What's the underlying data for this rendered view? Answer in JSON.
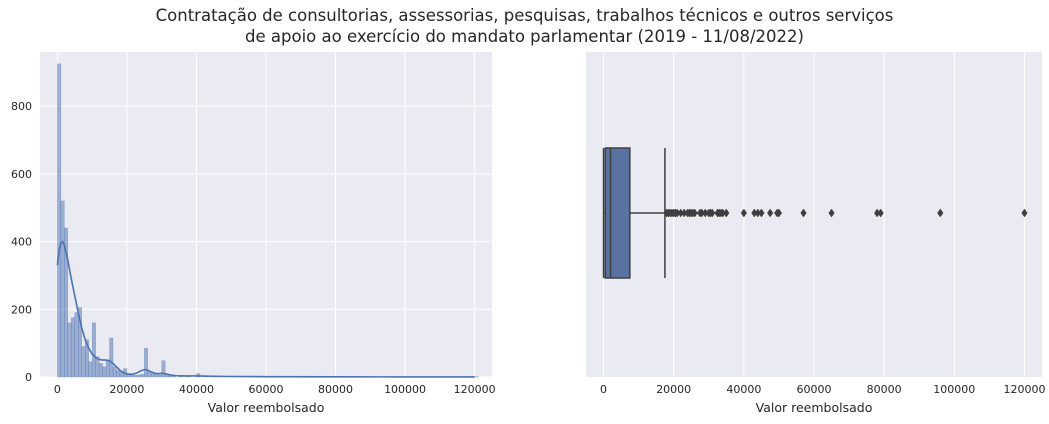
{
  "title_line1": "Contratação de consultorias, assessorias, pesquisas, trabalhos técnicos e outros serviços",
  "title_line2": "de apoio ao exercício do mandato parlamentar (2019 - 11/08/2022)",
  "colors": {
    "background": "#eaeaf2",
    "grid": "#ffffff",
    "bar_fill": "#4c72b0",
    "kde_line": "#4c72b0",
    "box_fill": "#5a72a2",
    "box_edge": "#3f3f3f",
    "text": "#262626"
  },
  "chart_data": [
    {
      "type": "histogram",
      "title": "",
      "xlabel": "Valor reembolsado",
      "ylabel": "",
      "xlim": [
        -5000,
        125000
      ],
      "ylim": [
        0,
        960
      ],
      "grid": true,
      "x_ticks": [
        "0",
        "20000",
        "40000",
        "60000",
        "80000",
        "100000",
        "120000"
      ],
      "y_ticks": [
        "0",
        "200",
        "400",
        "600",
        "800"
      ],
      "bin_width": 1000,
      "bins": [
        {
          "x": 0,
          "y": 925
        },
        {
          "x": 1000,
          "y": 520
        },
        {
          "x": 2000,
          "y": 440
        },
        {
          "x": 3000,
          "y": 160
        },
        {
          "x": 4000,
          "y": 175
        },
        {
          "x": 5000,
          "y": 190
        },
        {
          "x": 6000,
          "y": 205
        },
        {
          "x": 7000,
          "y": 90
        },
        {
          "x": 8000,
          "y": 110
        },
        {
          "x": 9000,
          "y": 45
        },
        {
          "x": 10000,
          "y": 160
        },
        {
          "x": 11000,
          "y": 60
        },
        {
          "x": 12000,
          "y": 40
        },
        {
          "x": 13000,
          "y": 30
        },
        {
          "x": 14000,
          "y": 50
        },
        {
          "x": 15000,
          "y": 115
        },
        {
          "x": 16000,
          "y": 30
        },
        {
          "x": 17000,
          "y": 20
        },
        {
          "x": 18000,
          "y": 15
        },
        {
          "x": 19000,
          "y": 25
        },
        {
          "x": 20000,
          "y": 10
        },
        {
          "x": 21000,
          "y": 8
        },
        {
          "x": 22000,
          "y": 5
        },
        {
          "x": 23000,
          "y": 6
        },
        {
          "x": 24000,
          "y": 8
        },
        {
          "x": 25000,
          "y": 85
        },
        {
          "x": 26000,
          "y": 15
        },
        {
          "x": 27000,
          "y": 10
        },
        {
          "x": 28000,
          "y": 8
        },
        {
          "x": 29000,
          "y": 6
        },
        {
          "x": 30000,
          "y": 48
        },
        {
          "x": 31000,
          "y": 10
        },
        {
          "x": 32000,
          "y": 5
        },
        {
          "x": 33000,
          "y": 4
        },
        {
          "x": 35000,
          "y": 5
        },
        {
          "x": 37000,
          "y": 3
        },
        {
          "x": 40000,
          "y": 10
        },
        {
          "x": 42000,
          "y": 2
        },
        {
          "x": 45000,
          "y": 3
        },
        {
          "x": 50000,
          "y": 3
        },
        {
          "x": 57000,
          "y": 2
        },
        {
          "x": 65000,
          "y": 1
        },
        {
          "x": 77000,
          "y": 1
        },
        {
          "x": 79000,
          "y": 1
        },
        {
          "x": 96000,
          "y": 1
        },
        {
          "x": 120000,
          "y": 1
        }
      ],
      "kde": [
        {
          "x": 0,
          "y": 330
        },
        {
          "x": 500,
          "y": 375
        },
        {
          "x": 1000,
          "y": 395
        },
        {
          "x": 1500,
          "y": 400
        },
        {
          "x": 2000,
          "y": 390
        },
        {
          "x": 3000,
          "y": 345
        },
        {
          "x": 4000,
          "y": 290
        },
        {
          "x": 5000,
          "y": 240
        },
        {
          "x": 6000,
          "y": 190
        },
        {
          "x": 7000,
          "y": 145
        },
        {
          "x": 8000,
          "y": 110
        },
        {
          "x": 9000,
          "y": 85
        },
        {
          "x": 10000,
          "y": 68
        },
        {
          "x": 11000,
          "y": 58
        },
        {
          "x": 12000,
          "y": 52
        },
        {
          "x": 13000,
          "y": 50
        },
        {
          "x": 14000,
          "y": 50
        },
        {
          "x": 15000,
          "y": 48
        },
        {
          "x": 16000,
          "y": 40
        },
        {
          "x": 17000,
          "y": 30
        },
        {
          "x": 18000,
          "y": 20
        },
        {
          "x": 19000,
          "y": 13
        },
        {
          "x": 20000,
          "y": 9
        },
        {
          "x": 21000,
          "y": 8
        },
        {
          "x": 22000,
          "y": 9
        },
        {
          "x": 23000,
          "y": 13
        },
        {
          "x": 24000,
          "y": 18
        },
        {
          "x": 25000,
          "y": 22
        },
        {
          "x": 26000,
          "y": 20
        },
        {
          "x": 27000,
          "y": 15
        },
        {
          "x": 28000,
          "y": 11
        },
        {
          "x": 29000,
          "y": 10
        },
        {
          "x": 30000,
          "y": 11
        },
        {
          "x": 31000,
          "y": 10
        },
        {
          "x": 32000,
          "y": 7
        },
        {
          "x": 34000,
          "y": 4
        },
        {
          "x": 36000,
          "y": 3
        },
        {
          "x": 38000,
          "y": 3
        },
        {
          "x": 40000,
          "y": 3
        },
        {
          "x": 45000,
          "y": 2
        },
        {
          "x": 50000,
          "y": 1.5
        },
        {
          "x": 60000,
          "y": 1
        },
        {
          "x": 80000,
          "y": 0.5
        },
        {
          "x": 100000,
          "y": 0.3
        },
        {
          "x": 120000,
          "y": 0.1
        }
      ]
    },
    {
      "type": "boxplot",
      "title": "",
      "xlabel": "Valor reembolsado",
      "ylabel": "",
      "xlim": [
        -5000,
        125000
      ],
      "grid": true,
      "x_ticks": [
        "0",
        "20000",
        "40000",
        "60000",
        "80000",
        "100000",
        "120000"
      ],
      "whisker_low": 0,
      "q1": 500,
      "median": 2000,
      "q3": 7500,
      "whisker_high": 17500,
      "outliers": [
        18000,
        18500,
        19000,
        19500,
        20000,
        20500,
        21000,
        22000,
        23000,
        24000,
        24500,
        25000,
        25500,
        26000,
        27500,
        28000,
        29000,
        30000,
        30500,
        31000,
        32500,
        33000,
        33500,
        34000,
        35000,
        40000,
        43000,
        44000,
        45000,
        47500,
        49500,
        50000,
        57000,
        65000,
        78000,
        79000,
        96000,
        120000
      ]
    }
  ]
}
